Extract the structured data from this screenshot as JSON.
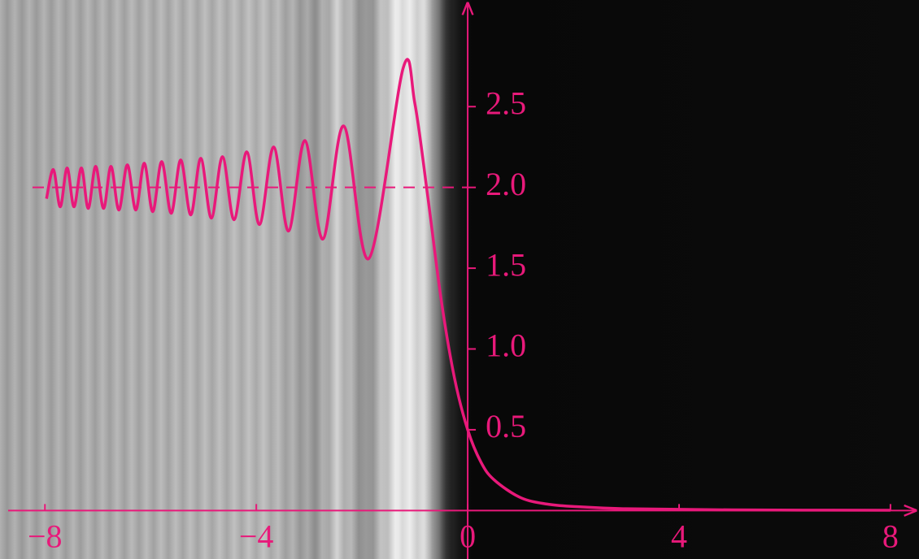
{
  "chart_data": {
    "type": "line",
    "x": [
      -7.97,
      -7.84,
      -7.71,
      -7.58,
      -7.45,
      -7.31,
      -7.18,
      -7.04,
      -6.89,
      -6.75,
      -6.6,
      -6.44,
      -6.28,
      -6.12,
      -5.96,
      -5.79,
      -5.61,
      -5.43,
      -5.24,
      -5.05,
      -4.85,
      -4.64,
      -4.42,
      -4.18,
      -3.94,
      -3.67,
      -3.39,
      -3.08,
      -2.74,
      -2.345,
      -1.87,
      -1.22,
      -1.0,
      -0.75,
      -0.5,
      -0.25,
      0,
      0.25,
      0.5,
      1,
      1.5,
      2,
      3,
      5,
      8
    ],
    "series": [
      {
        "color": "#e8197a",
        "values": [
          1.93,
          2.11,
          1.88,
          2.12,
          1.88,
          2.12,
          1.87,
          2.13,
          1.87,
          2.13,
          1.86,
          2.14,
          1.86,
          2.15,
          1.85,
          2.16,
          1.84,
          2.17,
          1.83,
          2.18,
          1.81,
          2.19,
          1.8,
          2.22,
          1.77,
          2.25,
          1.73,
          2.29,
          1.68,
          2.38,
          1.56,
          2.74,
          2.52,
          1.93,
          1.3,
          0.82,
          0.5,
          0.3,
          0.19,
          0.08,
          0.04,
          0.025,
          0.011,
          0.004,
          0.0016
        ]
      }
    ],
    "hline": 2,
    "xlim": [
      -8.85,
      8.54
    ],
    "ylim": [
      -0.3,
      3.16
    ],
    "xticks": [
      {
        "value": -8,
        "label": "−8"
      },
      {
        "value": -4,
        "label": "−4"
      },
      0,
      4,
      8
    ],
    "yticks": [
      0.5,
      {
        "value": 1,
        "label": "1.0"
      },
      1.5,
      {
        "value": 2,
        "label": "2.0"
      },
      2.5
    ]
  }
}
